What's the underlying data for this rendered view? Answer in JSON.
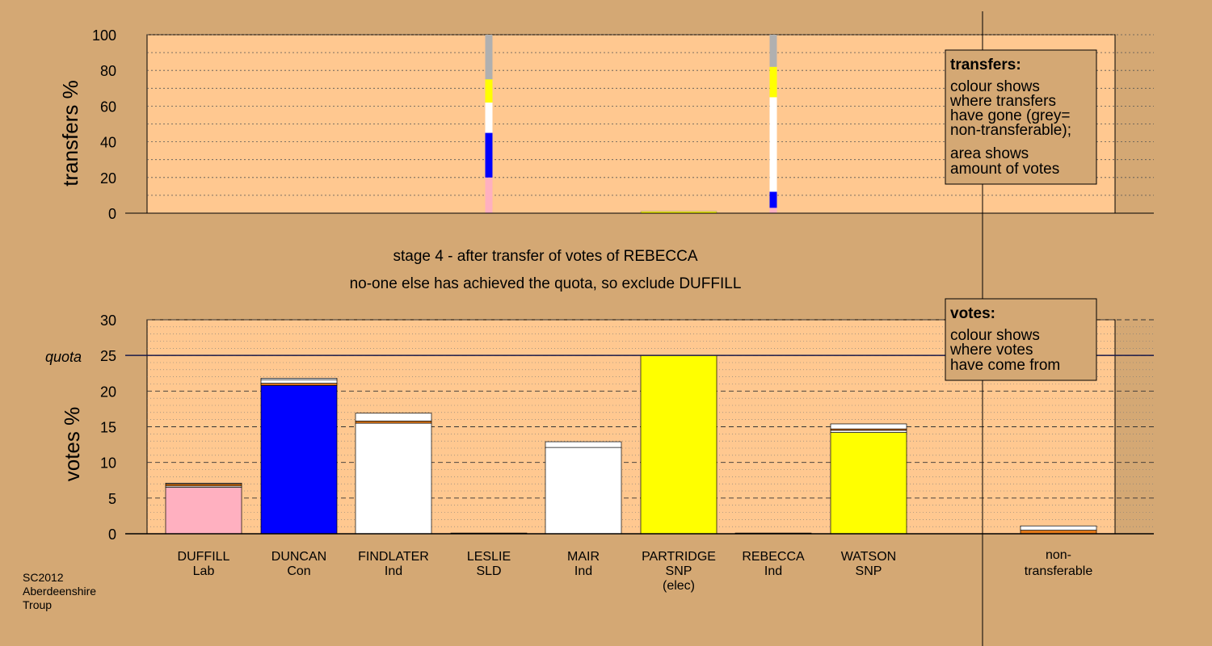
{
  "chart_data": [
    {
      "type": "bar",
      "ylabel": "transfers %",
      "ylim": [
        0,
        100
      ],
      "yticks": [
        "0",
        "20",
        "40",
        "60",
        "80",
        "100"
      ],
      "bars": [
        {
          "candidate_index": 3,
          "segments": [
            {
              "color": "#ffb0c0",
              "value": 20
            },
            {
              "color": "#0000ff",
              "value": 25
            },
            {
              "color": "#ffffff",
              "value": 17
            },
            {
              "color": "#ffff00",
              "value": 13
            },
            {
              "color": "#b0b0b0",
              "value": 25
            }
          ]
        },
        {
          "candidate_index": 5,
          "segments": [
            {
              "color": "#ffff00",
              "value": 1
            }
          ]
        },
        {
          "candidate_index": 6,
          "segments": [
            {
              "color": "#ffb0c0",
              "value": 3
            },
            {
              "color": "#0000ff",
              "value": 9
            },
            {
              "color": "#ffffff",
              "value": 53
            },
            {
              "color": "#ffff00",
              "value": 17
            },
            {
              "color": "#b0b0b0",
              "value": 18
            }
          ]
        }
      ],
      "legend": {
        "title": "transfers:",
        "lines": [
          "colour shows",
          "where transfers",
          "have gone (grey=",
          "non-transferable);",
          "area shows",
          "amount of votes"
        ]
      }
    },
    {
      "type": "bar",
      "ylabel": "votes %",
      "ylim": [
        0,
        30
      ],
      "yticks": [
        "0",
        "5",
        "10",
        "15",
        "20",
        "25",
        "30"
      ],
      "quota": {
        "label": "quota",
        "value": 25
      },
      "categories": [
        {
          "name": "DUFFILL",
          "party": "Lab",
          "extra": ""
        },
        {
          "name": "DUNCAN",
          "party": "Con",
          "extra": ""
        },
        {
          "name": "FINDLATER",
          "party": "Ind",
          "extra": ""
        },
        {
          "name": "LESLIE",
          "party": "SLD",
          "extra": ""
        },
        {
          "name": "MAIR",
          "party": "Ind",
          "extra": ""
        },
        {
          "name": "PARTRIDGE",
          "party": "SNP",
          "extra": "(elec)"
        },
        {
          "name": "REBECCA",
          "party": "Ind",
          "extra": ""
        },
        {
          "name": "WATSON",
          "party": "SNP",
          "extra": ""
        },
        {
          "name": "non-",
          "party": "transferable",
          "extra": ""
        }
      ],
      "bars": [
        [
          {
            "color": "#ffb0c0",
            "value": 6.5
          },
          {
            "color": "#ffffff",
            "value": 0.2
          },
          {
            "color": "#e07818",
            "value": 0.3
          },
          {
            "color": "#ffffff",
            "value": 0.1
          }
        ],
        [
          {
            "color": "#0000ff",
            "value": 20.8
          },
          {
            "color": "#e07818",
            "value": 0.3
          },
          {
            "color": "#ffffff",
            "value": 0.5
          },
          {
            "color": "#ffffff",
            "value": 0.2
          }
        ],
        [
          {
            "color": "#ffffff",
            "value": 15.5
          },
          {
            "color": "#e07818",
            "value": 0.3
          },
          {
            "color": "#ffffff",
            "value": 1.1
          }
        ],
        [
          {
            "color": "#ffffff",
            "value": 0.1
          }
        ],
        [
          {
            "color": "#ffffff",
            "value": 12.1
          },
          {
            "color": "#ffffff",
            "value": 0.8
          }
        ],
        [
          {
            "color": "#ffff00",
            "value": 25.0
          }
        ],
        [
          {
            "color": "#ffffff",
            "value": 0.1
          }
        ],
        [
          {
            "color": "#ffff00",
            "value": 14.2
          },
          {
            "color": "#ffffff",
            "value": 0.3
          },
          {
            "color": "#e07818",
            "value": 0.2
          },
          {
            "color": "#ffffff",
            "value": 0.7
          }
        ],
        [
          {
            "color": "#e07818",
            "value": 0.5
          },
          {
            "color": "#ffffff",
            "value": 0.6
          }
        ]
      ],
      "legend": {
        "title": "votes:",
        "lines": [
          "colour shows",
          "where votes",
          "have come from"
        ]
      }
    }
  ],
  "stage": {
    "line1": "stage 4 - after transfer of votes of REBECCA",
    "line2": "no-one else has achieved the quota, so exclude DUFFILL"
  },
  "footer": [
    "SC2012",
    "Aberdeenshire",
    "Troup"
  ],
  "colors": {
    "background": "#d4a874",
    "plot_area": "#ffc890"
  }
}
